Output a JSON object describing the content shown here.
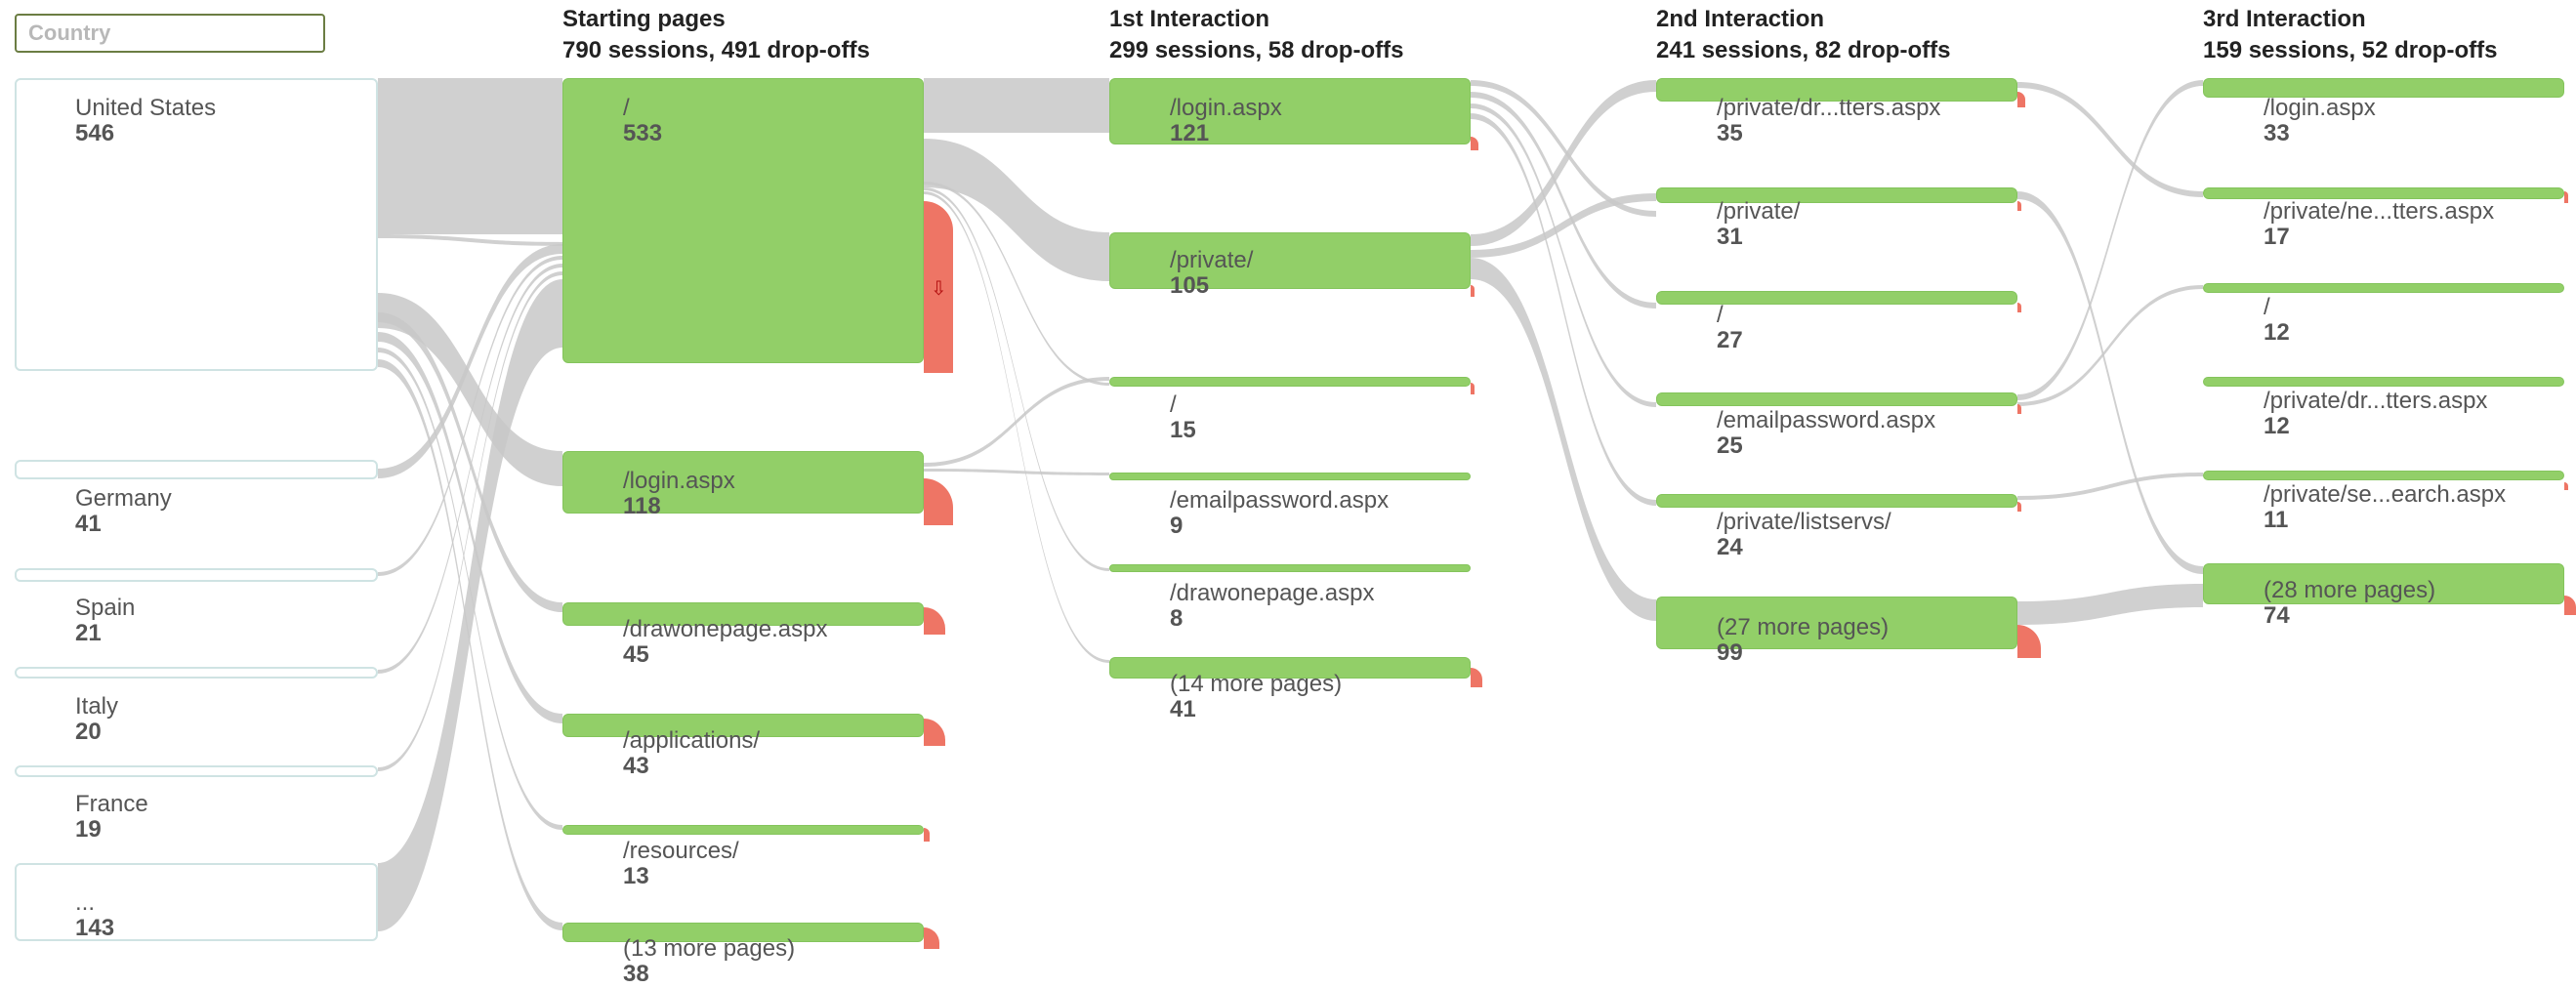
{
  "filter": {
    "placeholder": "Country"
  },
  "headers": [
    {
      "title": "Starting pages",
      "subtitle": "790 sessions, 491 drop-offs"
    },
    {
      "title": "1st Interaction",
      "subtitle": "299 sessions, 58 drop-offs"
    },
    {
      "title": "2nd Interaction",
      "subtitle": "241 sessions, 82 drop-offs"
    },
    {
      "title": "3rd Interaction",
      "subtitle": "159 sessions, 52 drop-offs"
    }
  ],
  "countries": [
    {
      "name": "United States",
      "value": "546"
    },
    {
      "name": "Germany",
      "value": "41"
    },
    {
      "name": "Spain",
      "value": "21"
    },
    {
      "name": "Italy",
      "value": "20"
    },
    {
      "name": "France",
      "value": "19"
    },
    {
      "name": "...",
      "value": "143"
    }
  ],
  "starting_pages": [
    {
      "name": "/",
      "value": "533"
    },
    {
      "name": "/login.aspx",
      "value": "118"
    },
    {
      "name": "/drawonepage.aspx",
      "value": "45"
    },
    {
      "name": "/applications/",
      "value": "43"
    },
    {
      "name": "/resources/",
      "value": "13"
    },
    {
      "name": "(13 more pages)",
      "value": "38"
    }
  ],
  "interaction_1": [
    {
      "name": "/login.aspx",
      "value": "121"
    },
    {
      "name": "/private/",
      "value": "105"
    },
    {
      "name": "/",
      "value": "15"
    },
    {
      "name": "/emailpassword.aspx",
      "value": "9"
    },
    {
      "name": "/drawonepage.aspx",
      "value": "8"
    },
    {
      "name": "(14 more pages)",
      "value": "41"
    }
  ],
  "interaction_2": [
    {
      "name": "/private/dr...tters.aspx",
      "value": "35"
    },
    {
      "name": "/private/",
      "value": "31"
    },
    {
      "name": "/",
      "value": "27"
    },
    {
      "name": "/emailpassword.aspx",
      "value": "25"
    },
    {
      "name": "/private/listservs/",
      "value": "24"
    },
    {
      "name": "(27 more pages)",
      "value": "99"
    }
  ],
  "interaction_3": [
    {
      "name": "/login.aspx",
      "value": "33"
    },
    {
      "name": "/private/ne...tters.aspx",
      "value": "17"
    },
    {
      "name": "/",
      "value": "12"
    },
    {
      "name": "/private/dr...tters.aspx",
      "value": "12"
    },
    {
      "name": "/private/se...earch.aspx",
      "value": "11"
    },
    {
      "name": "(28 more pages)",
      "value": "74"
    }
  ],
  "colors": {
    "page_node": "#92cf68",
    "dropoff": "#ee7565",
    "link": "#c8c8c8",
    "country_border": "#cfe3e3",
    "filter_border": "#6b7d43"
  }
}
